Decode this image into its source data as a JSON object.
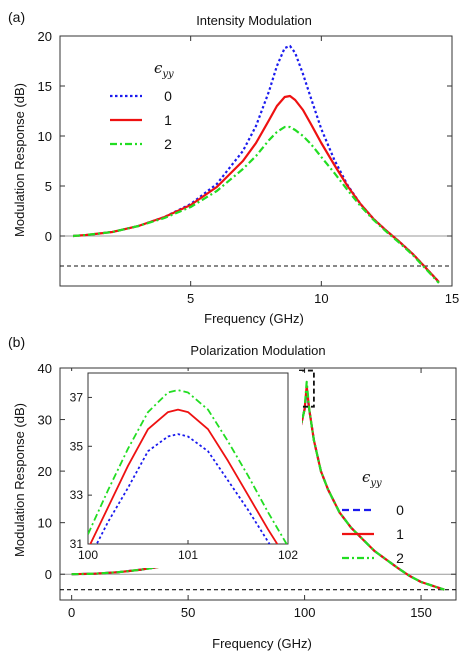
{
  "chart_data": [
    {
      "panel_label": "(a)",
      "type": "line",
      "title": "Intensity Modulation",
      "xlabel": "Frequency (GHz)",
      "ylabel": "Modulation Response (dB)",
      "xlim": [
        0,
        15
      ],
      "ylim": [
        -5,
        20
      ],
      "xticks": [
        "5",
        "10",
        "15"
      ],
      "xtick_values": [
        5,
        10,
        15
      ],
      "yticks": [
        "0",
        "5",
        "10",
        "15",
        "20"
      ],
      "ytick_values": [
        0,
        5,
        10,
        15,
        20
      ],
      "reference_lines": [
        0,
        -3
      ],
      "legend": {
        "title": "ϵ",
        "title_sub": "yy",
        "placement": "upper-left"
      },
      "series": [
        {
          "name": "0",
          "color": "#1a1aee",
          "dash": "dotted",
          "x": [
            0.5,
            1,
            2,
            3,
            4,
            5,
            6,
            7,
            7.5,
            8,
            8.3,
            8.6,
            8.8,
            9,
            9.3,
            9.6,
            10,
            10.5,
            11,
            11.5,
            12,
            12.5,
            13,
            13.5,
            14,
            14.5
          ],
          "y": [
            0,
            0.1,
            0.4,
            1,
            1.9,
            3.2,
            5.2,
            8.5,
            11,
            14.5,
            17,
            18.8,
            19,
            18.3,
            16.2,
            13.8,
            10.7,
            7.6,
            5.1,
            3.2,
            1.7,
            0.5,
            -0.6,
            -1.8,
            -3.2,
            -4.6
          ]
        },
        {
          "name": "1",
          "color": "#ee1111",
          "dash": "solid",
          "x": [
            0.5,
            1,
            2,
            3,
            4,
            5,
            6,
            7,
            7.5,
            8,
            8.3,
            8.6,
            8.8,
            9,
            9.3,
            9.6,
            10,
            10.5,
            11,
            11.5,
            12,
            12.5,
            13,
            13.5,
            14,
            14.5
          ],
          "y": [
            0,
            0.1,
            0.4,
            1,
            1.9,
            3.1,
            4.9,
            7.5,
            9.3,
            11.6,
            13,
            13.9,
            14,
            13.6,
            12.6,
            11.2,
            9.3,
            7.1,
            5,
            3.2,
            1.7,
            0.5,
            -0.6,
            -1.8,
            -3.2,
            -4.6
          ]
        },
        {
          "name": "2",
          "color": "#22dd22",
          "dash": "dashdot",
          "x": [
            0.5,
            1,
            2,
            3,
            4,
            5,
            6,
            7,
            7.5,
            8,
            8.3,
            8.6,
            8.8,
            9,
            9.3,
            9.6,
            10,
            10.5,
            11,
            11.5,
            12,
            12.5,
            13,
            13.5,
            14,
            14.5
          ],
          "y": [
            0,
            0.1,
            0.4,
            1,
            1.8,
            2.9,
            4.5,
            6.7,
            8,
            9.6,
            10.4,
            10.9,
            10.9,
            10.6,
            10,
            9.2,
            7.9,
            6.3,
            4.6,
            3,
            1.6,
            0.4,
            -0.7,
            -1.9,
            -3.3,
            -4.7
          ]
        }
      ]
    },
    {
      "panel_label": "(b)",
      "type": "line",
      "title": "Polarization Modulation",
      "xlabel": "Frequency (GHz)",
      "ylabel": "Modulation Response (dB)",
      "xlim": [
        -5,
        165
      ],
      "ylim": [
        -5,
        40
      ],
      "xticks": [
        "0",
        "50",
        "100",
        "150"
      ],
      "xtick_values": [
        0,
        50,
        100,
        150
      ],
      "yticks": [
        "0",
        "10",
        "20",
        "30",
        "40"
      ],
      "ytick_values": [
        0,
        10,
        20,
        30,
        40
      ],
      "reference_lines": [
        0,
        -3
      ],
      "legend": {
        "title": "ϵ",
        "title_sub": "yy",
        "placement": "right"
      },
      "series": [
        {
          "name": "0",
          "color": "#1a1aee",
          "dash": "dashed",
          "x": [
            0,
            10,
            20,
            30,
            40,
            50,
            60,
            70,
            80,
            85,
            90,
            95,
            98,
            100,
            100.9,
            102,
            104,
            107,
            110,
            115,
            120,
            130,
            140,
            145,
            150,
            160
          ],
          "y": [
            0,
            0.1,
            0.4,
            0.9,
            1.6,
            2.5,
            3.8,
            5.8,
            9.5,
            12.5,
            16.5,
            22.5,
            28,
            32,
            35.5,
            32,
            26,
            20,
            16.5,
            12,
            9,
            4.5,
            1.2,
            -0.3,
            -1.5,
            -3
          ]
        },
        {
          "name": "1",
          "color": "#ee1111",
          "dash": "solid",
          "x": [
            0,
            10,
            20,
            30,
            40,
            50,
            60,
            70,
            80,
            85,
            90,
            95,
            98,
            100,
            100.9,
            102,
            104,
            107,
            110,
            115,
            120,
            130,
            140,
            145,
            150,
            160
          ],
          "y": [
            0,
            0.1,
            0.4,
            0.9,
            1.6,
            2.5,
            3.8,
            5.8,
            9.5,
            12.5,
            16.5,
            22.5,
            28,
            32,
            36.5,
            32,
            26,
            20,
            16.5,
            12,
            9,
            4.5,
            1.2,
            -0.3,
            -1.5,
            -3
          ]
        },
        {
          "name": "2",
          "color": "#22dd22",
          "dash": "dashdot",
          "x": [
            0,
            10,
            20,
            30,
            40,
            50,
            60,
            70,
            80,
            85,
            90,
            95,
            98,
            100,
            100.9,
            102,
            104,
            107,
            110,
            115,
            120,
            130,
            140,
            145,
            150,
            160
          ],
          "y": [
            0,
            0.1,
            0.4,
            0.9,
            1.6,
            2.5,
            3.8,
            5.8,
            9.5,
            12.5,
            16.5,
            22.5,
            28,
            32,
            37.3,
            32,
            26,
            20,
            16.5,
            12,
            9,
            4.5,
            1.2,
            -0.3,
            -1.5,
            -3
          ]
        }
      ],
      "inset": {
        "xlim": [
          100,
          102
        ],
        "ylim": [
          31,
          38
        ],
        "xticks": [
          "100",
          "101",
          "102"
        ],
        "xtick_values": [
          100,
          101,
          102
        ],
        "yticks": [
          "31",
          "33",
          "35",
          "37"
        ],
        "ytick_values": [
          31,
          33,
          35,
          37
        ],
        "highlight_box": {
          "x": [
            98,
            104
          ],
          "y": [
            32.5,
            39.5
          ]
        },
        "series": [
          {
            "name": "0",
            "color": "#1a1aee",
            "dash": "dotted",
            "x": [
              100,
              100.2,
              100.4,
              100.6,
              100.8,
              100.9,
              101,
              101.2,
              101.4,
              101.6,
              101.8,
              102
            ],
            "y": [
              30.3,
              31.9,
              33.3,
              34.8,
              35.4,
              35.5,
              35.4,
              34.8,
              33.6,
              32.4,
              31.1,
              29.8
            ]
          },
          {
            "name": "1",
            "color": "#ee1111",
            "dash": "solid",
            "x": [
              100,
              100.2,
              100.4,
              100.6,
              100.8,
              100.9,
              101,
              101.2,
              101.4,
              101.6,
              101.8,
              102
            ],
            "y": [
              30.8,
              32.5,
              34.2,
              35.7,
              36.4,
              36.5,
              36.4,
              35.7,
              34.4,
              33,
              31.6,
              30.3
            ]
          },
          {
            "name": "2",
            "color": "#22dd22",
            "dash": "dashdot",
            "x": [
              100,
              100.2,
              100.4,
              100.6,
              100.8,
              100.9,
              101,
              101.2,
              101.4,
              101.6,
              101.8,
              102
            ],
            "y": [
              31.4,
              33.2,
              34.9,
              36.4,
              37.2,
              37.3,
              37.2,
              36.5,
              35.2,
              33.8,
              32.3,
              30.9
            ]
          }
        ]
      }
    }
  ]
}
